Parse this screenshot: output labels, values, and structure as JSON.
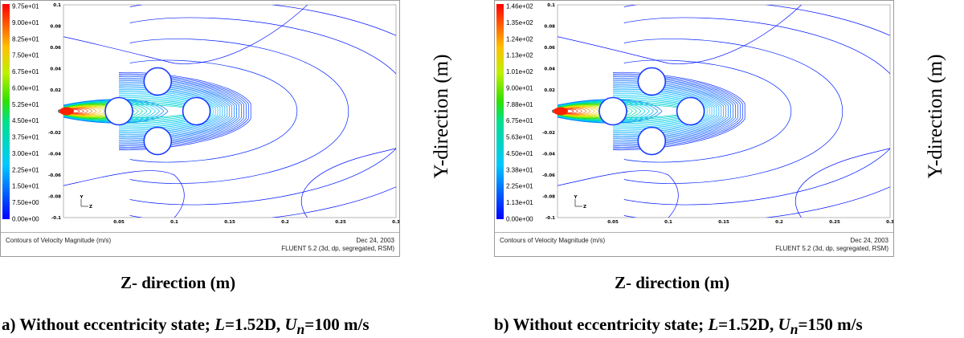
{
  "chart_data": [
    {
      "type": "contour",
      "panel": "a",
      "window_title": "Contours of Velocity Magnitude (m/s)",
      "date": "Dec 24, 2003",
      "solver": "FLUENT 5.2 (3d, dp, segregated, RSM)",
      "colorbar_labels": [
        "9.75e+01",
        "9.00e+01",
        "8.25e+01",
        "7.50e+01",
        "6.75e+01",
        "6.00e+01",
        "5.25e+01",
        "4.50e+01",
        "3.75e+01",
        "3.00e+01",
        "2.25e+01",
        "1.50e+01",
        "7.50e+00",
        "0.00e+00"
      ],
      "colorbar_max": 97.5,
      "x_ticks": [
        "0.05",
        "0.1",
        "0.15",
        "0.2",
        "0.25",
        "0.3"
      ],
      "x_tick_values": [
        0.05,
        0.1,
        0.15,
        0.2,
        0.25,
        0.3
      ],
      "y_ticks": [
        "0.1",
        "0.08",
        "0.06",
        "0.04",
        "0.02",
        "0",
        "-0.02",
        "-0.04",
        "-0.06",
        "-0.08",
        "-0.1"
      ],
      "y_tick_values": [
        0.1,
        0.08,
        0.06,
        0.04,
        0.02,
        0,
        -0.02,
        -0.04,
        -0.06,
        -0.08,
        -0.1
      ],
      "xlim": [
        0,
        0.3
      ],
      "ylim": [
        -0.1,
        0.1
      ],
      "axis_triad": {
        "y": "Y",
        "z": "Z"
      },
      "xlabel": "Z- direction (m)",
      "ylabel": "Y-direction (m)",
      "caption": {
        "prefix": "a) Without eccentricity state; ",
        "L": "L",
        "L_value": "=1.52D, ",
        "U": "U",
        "U_sub": "n",
        "U_value": "=100 m/s"
      }
    },
    {
      "type": "contour",
      "panel": "b",
      "window_title": "Contours of Velocity Magnitude (m/s)",
      "date": "Dec 24, 2003",
      "solver": "FLUENT 5.2 (3d, dp, segregated, RSM)",
      "colorbar_labels": [
        "1.46e+02",
        "1.35e+02",
        "1.24e+02",
        "1.13e+02",
        "1.01e+02",
        "9.00e+01",
        "7.88e+01",
        "6.75e+01",
        "5.63e+01",
        "4.50e+01",
        "3.38e+01",
        "2.25e+01",
        "1.13e+01",
        "0.00e+00"
      ],
      "colorbar_max": 146,
      "x_ticks": [
        "0.05",
        "0.1",
        "0.15",
        "0.2",
        "0.25",
        "0.3"
      ],
      "x_tick_values": [
        0.05,
        0.1,
        0.15,
        0.2,
        0.25,
        0.3
      ],
      "y_ticks": [
        "0.1",
        "0.08",
        "0.06",
        "0.04",
        "0.02",
        "0",
        "-0.02",
        "-0.04",
        "-0.06",
        "-0.08",
        "-0.1"
      ],
      "y_tick_values": [
        0.1,
        0.08,
        0.06,
        0.04,
        0.02,
        0,
        -0.02,
        -0.04,
        -0.06,
        -0.08,
        -0.1
      ],
      "xlim": [
        0,
        0.3
      ],
      "ylim": [
        -0.1,
        0.1
      ],
      "axis_triad": {
        "y": "Y",
        "z": "Z"
      },
      "xlabel": "Z- direction (m)",
      "ylabel": "Y-direction (m)",
      "caption": {
        "prefix": "b) Without eccentricity state; ",
        "L": "L",
        "L_value": "=1.52D, ",
        "U": "U",
        "U_sub": "n",
        "U_value": "=150 m/s"
      }
    }
  ]
}
